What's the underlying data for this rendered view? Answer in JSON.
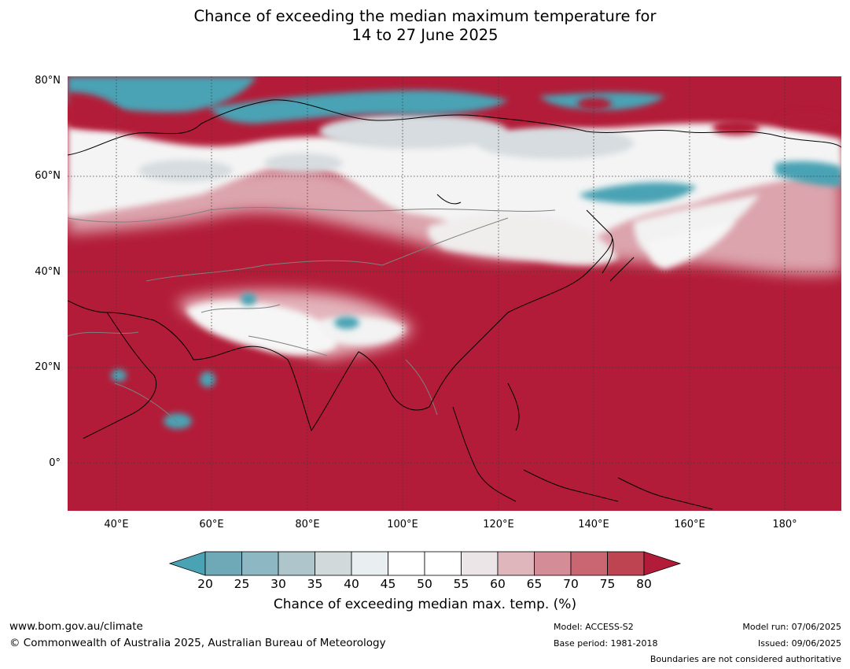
{
  "title": {
    "line1": "Chance of exceeding the median maximum temperature for",
    "line2": "14 to 27 June 2025"
  },
  "map": {
    "latitude_labels": [
      "80°N",
      "60°N",
      "40°N",
      "20°N",
      "0°"
    ],
    "longitude_labels": [
      "40°E",
      "60°E",
      "80°E",
      "100°E",
      "120°E",
      "140°E",
      "160°E",
      "180°"
    ],
    "colors": {
      "ocean_and_background": "#b21c38",
      "grid": "#3a3a3a",
      "coastline": "#000000",
      "borders": "#808080"
    }
  },
  "colorbar": {
    "ticks": [
      "20",
      "25",
      "30",
      "35",
      "40",
      "45",
      "50",
      "55",
      "60",
      "65",
      "70",
      "75",
      "80"
    ],
    "colors": [
      "#4aa3b4",
      "#6fa8b6",
      "#8db7c3",
      "#aec6cb",
      "#d2d9db",
      "#e9eef0",
      "#ffffff",
      "#ffffff",
      "#ebe5e7",
      "#e0b6bd",
      "#d48c96",
      "#c96672",
      "#bd4450",
      "#b21c38"
    ],
    "label": "Chance of exceeding median max. temp. (%)"
  },
  "footer": {
    "website": "www.bom.gov.au/climate",
    "copyright": "© Commonwealth of Australia 2025, Australian Bureau of Meteorology",
    "model": "Model: ACCESS-S2",
    "base_period": "Base period: 1981-2018",
    "model_run": "Model run: 07/06/2025",
    "issued": "Issued: 09/06/2025",
    "disclaimer": "Boundaries are not considered authoritative"
  }
}
